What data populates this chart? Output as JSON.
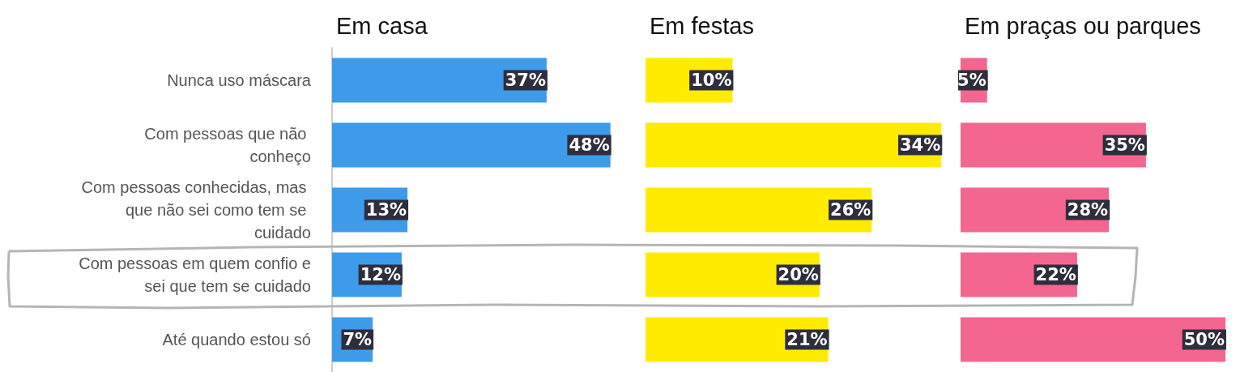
{
  "chart_data": [
    {
      "type": "bar",
      "orientation": "horizontal",
      "title": "Em casa",
      "categories": [
        "Nunca uso máscara",
        "Com pessoas que não conheço",
        "Com pessoas conhecidas, mas que não sei como tem se cuidado",
        "Com pessoas em quem confio e sei que tem se cuidado",
        "Até quando estou só"
      ],
      "values": [
        37,
        48,
        13,
        12,
        7
      ],
      "value_labels": [
        "37%",
        "48%",
        "13%",
        "12%",
        "7%"
      ],
      "color": "#3d9be9",
      "tick_labels": "y"
    },
    {
      "type": "bar",
      "orientation": "horizontal",
      "title": "Em festas",
      "categories": [
        null,
        null,
        null,
        null,
        null
      ],
      "values": [
        10,
        34,
        26,
        20,
        21
      ],
      "value_labels": [
        "10%",
        "34%",
        "26%",
        "20%",
        "21%"
      ],
      "color": "#ffeb00",
      "tick_labels": false
    },
    {
      "type": "bar",
      "orientation": "horizontal",
      "title": "Em praças ou parques",
      "categories": [
        null,
        null,
        null,
        null,
        null
      ],
      "values": [
        5,
        35,
        28,
        22,
        50
      ],
      "value_labels": [
        "5%",
        "35%",
        "28%",
        "22%",
        "50%"
      ],
      "color": "#f3668f",
      "tick_labels": false
    }
  ]
}
